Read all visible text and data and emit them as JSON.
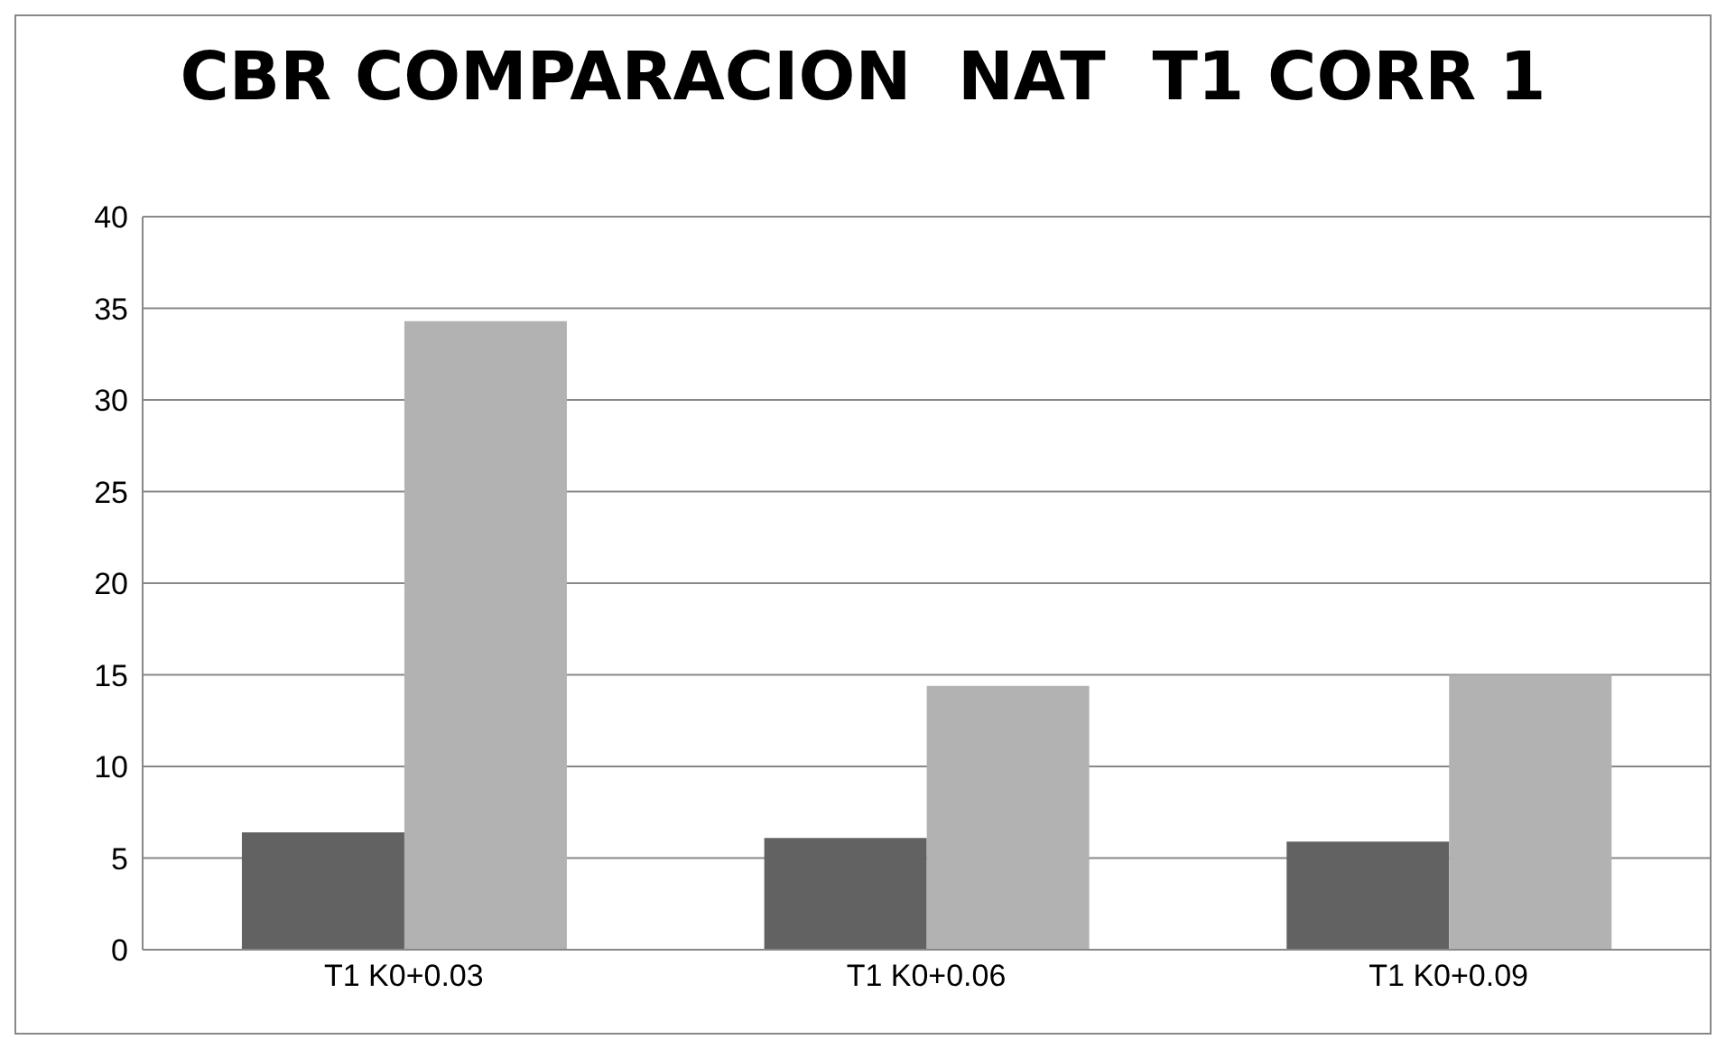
{
  "chart_data": {
    "type": "bar",
    "title": "CBR COMPARACION  NAT  T1 CORR 1",
    "categories": [
      "T1  K0+0.03",
      "T1  K0+0.06",
      "T1  K0+0.09"
    ],
    "series": [
      {
        "color": "#626262",
        "values": [
          6.4,
          6.1,
          5.9
        ]
      },
      {
        "color": "#b2b2b2",
        "values": [
          34.3,
          14.4,
          15.0
        ]
      }
    ],
    "ylim": [
      0,
      40
    ],
    "yticks": [
      0,
      5,
      10,
      15,
      20,
      25,
      30,
      35,
      40
    ],
    "grid": "y"
  }
}
